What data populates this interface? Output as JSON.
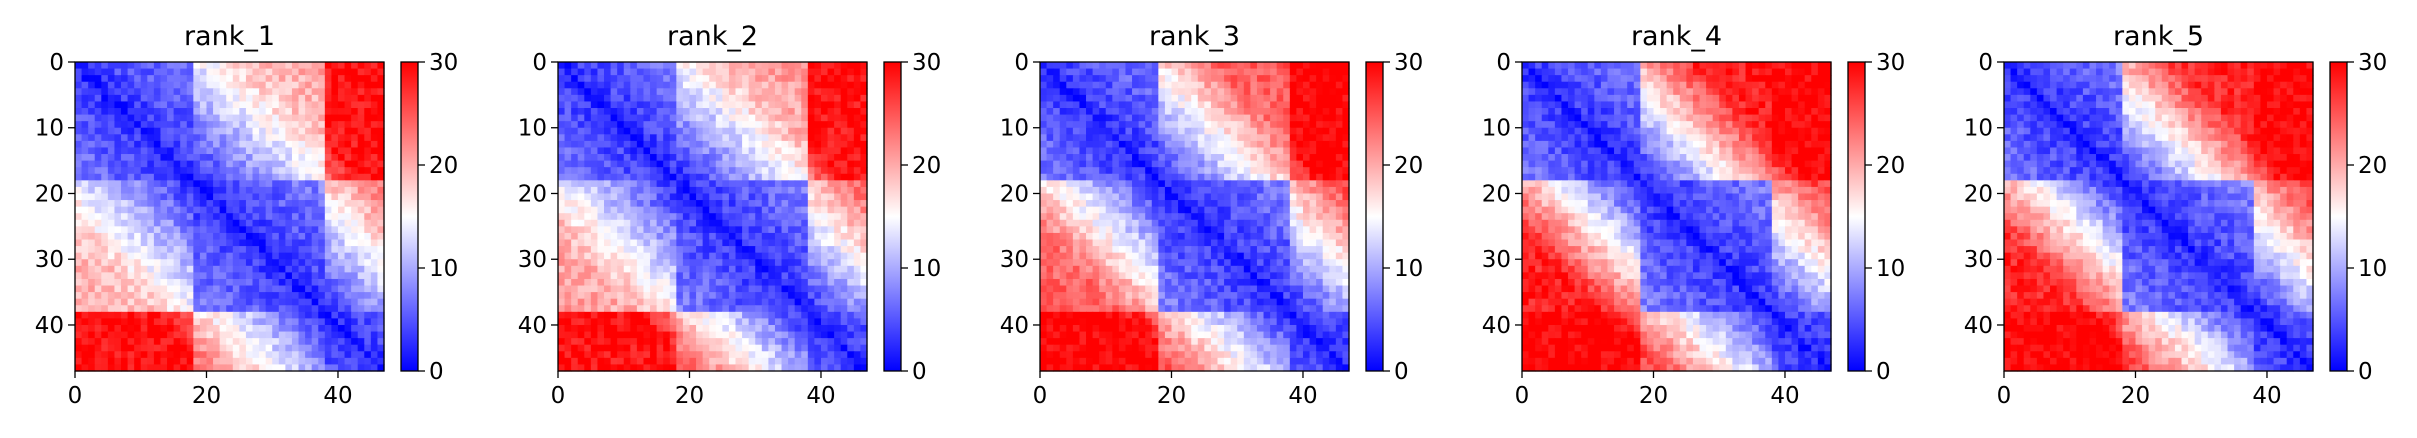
{
  "chart_data": [
    {
      "type": "heatmap",
      "title": "rank_1",
      "n": 47,
      "xlim": [
        0,
        47
      ],
      "ylim": [
        47,
        0
      ],
      "xticks": [
        0,
        20,
        40
      ],
      "yticks": [
        0,
        10,
        20,
        30,
        40
      ],
      "colorbar": {
        "min": 0,
        "max": 30,
        "ticks": [
          0,
          10,
          20,
          30
        ],
        "colormap": [
          "#0000ff",
          "#ffffff",
          "#ff0000"
        ]
      },
      "domains": [
        [
          0,
          18
        ],
        [
          18,
          38
        ],
        [
          38,
          47
        ]
      ],
      "domain_affinity": [
        [
          1.0,
          0.55,
          0.05
        ],
        [
          0.55,
          1.0,
          0.35
        ],
        [
          0.05,
          0.35,
          1.0
        ]
      ]
    },
    {
      "type": "heatmap",
      "title": "rank_2",
      "n": 47,
      "xlim": [
        0,
        47
      ],
      "ylim": [
        47,
        0
      ],
      "xticks": [
        0,
        20,
        40
      ],
      "yticks": [
        0,
        10,
        20,
        30,
        40
      ],
      "colorbar": {
        "min": 0,
        "max": 30,
        "ticks": [
          0,
          10,
          20,
          30
        ],
        "colormap": [
          "#0000ff",
          "#ffffff",
          "#ff0000"
        ]
      },
      "domains": [
        [
          0,
          18
        ],
        [
          18,
          38
        ],
        [
          38,
          47
        ]
      ],
      "domain_affinity": [
        [
          1.0,
          0.5,
          0.05
        ],
        [
          0.5,
          1.0,
          0.3
        ],
        [
          0.05,
          0.3,
          1.0
        ]
      ]
    },
    {
      "type": "heatmap",
      "title": "rank_3",
      "n": 47,
      "xlim": [
        0,
        47
      ],
      "ylim": [
        47,
        0
      ],
      "xticks": [
        0,
        20,
        40
      ],
      "yticks": [
        0,
        10,
        20,
        30,
        40
      ],
      "colorbar": {
        "min": 0,
        "max": 30,
        "ticks": [
          0,
          10,
          20,
          30
        ],
        "colormap": [
          "#0000ff",
          "#ffffff",
          "#ff0000"
        ]
      },
      "domains": [
        [
          0,
          18
        ],
        [
          18,
          38
        ],
        [
          38,
          47
        ]
      ],
      "domain_affinity": [
        [
          1.0,
          0.3,
          0.0
        ],
        [
          0.3,
          1.0,
          0.25
        ],
        [
          0.0,
          0.25,
          1.0
        ]
      ]
    },
    {
      "type": "heatmap",
      "title": "rank_4",
      "n": 47,
      "xlim": [
        0,
        47
      ],
      "ylim": [
        47,
        0
      ],
      "xticks": [
        0,
        20,
        40
      ],
      "yticks": [
        0,
        10,
        20,
        30,
        40
      ],
      "colorbar": {
        "min": 0,
        "max": 30,
        "ticks": [
          0,
          10,
          20,
          30
        ],
        "colormap": [
          "#0000ff",
          "#ffffff",
          "#ff0000"
        ]
      },
      "domains": [
        [
          0,
          18
        ],
        [
          18,
          38
        ],
        [
          38,
          47
        ]
      ],
      "domain_affinity": [
        [
          1.0,
          0.1,
          0.0
        ],
        [
          0.1,
          1.0,
          0.2
        ],
        [
          0.0,
          0.2,
          1.0
        ]
      ]
    },
    {
      "type": "heatmap",
      "title": "rank_5",
      "n": 47,
      "xlim": [
        0,
        47
      ],
      "ylim": [
        47,
        0
      ],
      "xticks": [
        0,
        20,
        40
      ],
      "yticks": [
        0,
        10,
        20,
        30,
        40
      ],
      "colorbar": {
        "min": 0,
        "max": 30,
        "ticks": [
          0,
          10,
          20,
          30
        ],
        "colormap": [
          "#0000ff",
          "#ffffff",
          "#ff0000"
        ]
      },
      "domains": [
        [
          0,
          18
        ],
        [
          18,
          38
        ],
        [
          38,
          47
        ]
      ],
      "domain_affinity": [
        [
          1.0,
          0.12,
          0.0
        ],
        [
          0.12,
          1.0,
          0.2
        ],
        [
          0.0,
          0.2,
          1.0
        ]
      ]
    }
  ]
}
